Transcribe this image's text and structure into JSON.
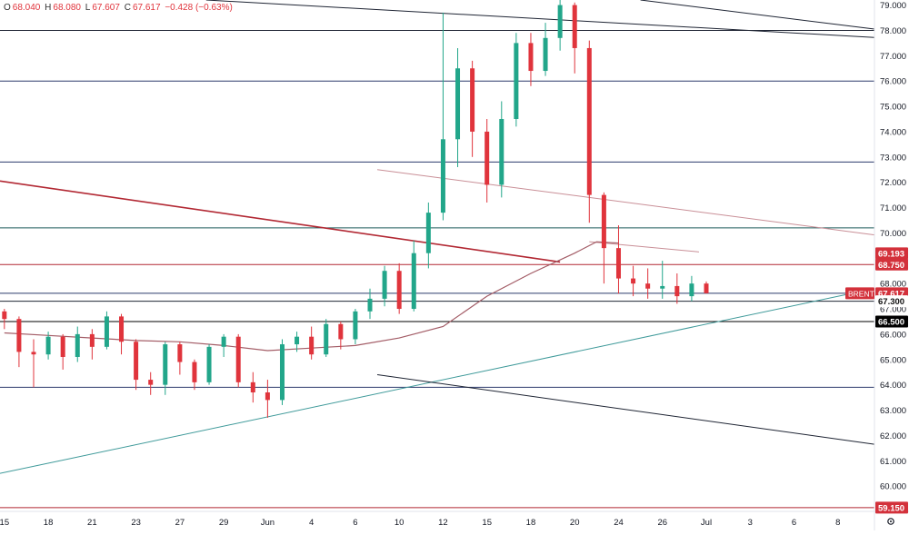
{
  "ohlc": {
    "open_label": "O",
    "open": "68.040",
    "high_label": "H",
    "high": "68.080",
    "low_label": "L",
    "low": "67.607",
    "close_label": "C",
    "close": "67.617",
    "change": "−0.428 (−0.63%)"
  },
  "chart_data": {
    "type": "candlestick",
    "symbol": "BRENT",
    "last_price": "67.617",
    "ylim": [
      59.0,
      79.2
    ],
    "y_ticks": [
      "60.000",
      "61.000",
      "62.000",
      "63.000",
      "64.000",
      "65.000",
      "66.000",
      "67.000",
      "68.000",
      "70.000",
      "71.000",
      "72.000",
      "73.000",
      "74.000",
      "75.000",
      "76.000",
      "77.000",
      "78.000",
      "79.000"
    ],
    "x_ticks": [
      {
        "label": "15",
        "i": 0
      },
      {
        "label": "18",
        "i": 3
      },
      {
        "label": "21",
        "i": 6
      },
      {
        "label": "23",
        "i": 9
      },
      {
        "label": "27",
        "i": 12
      },
      {
        "label": "29",
        "i": 15
      },
      {
        "label": "Jun",
        "i": 18
      },
      {
        "label": "4",
        "i": 21
      },
      {
        "label": "6",
        "i": 24
      },
      {
        "label": "10",
        "i": 27
      },
      {
        "label": "12",
        "i": 30
      },
      {
        "label": "15",
        "i": 33
      },
      {
        "label": "18",
        "i": 36
      },
      {
        "label": "20",
        "i": 39
      },
      {
        "label": "24",
        "i": 42
      },
      {
        "label": "26",
        "i": 45
      },
      {
        "label": "Jul",
        "i": 48
      },
      {
        "label": "3",
        "i": 51
      },
      {
        "label": "6",
        "i": 54
      },
      {
        "label": "8",
        "i": 57
      }
    ],
    "x_range": [
      -0.3,
      59.5
    ],
    "horizontal_levels": [
      {
        "value": 78.0,
        "color": "#1e2433"
      },
      {
        "value": 76.0,
        "color": "#2b3a6b"
      },
      {
        "value": 72.8,
        "color": "#2b3a6b"
      },
      {
        "value": 70.2,
        "color": "#1e5a5a"
      },
      {
        "value": 68.75,
        "color": "#b22833"
      },
      {
        "value": 67.617,
        "color": "#2b3a6b"
      },
      {
        "value": 67.3,
        "color": "#1e2433"
      },
      {
        "value": 66.5,
        "color": "#000000"
      },
      {
        "value": 63.9,
        "color": "#2b3a6b"
      },
      {
        "value": 59.15,
        "color": "#b22833"
      }
    ],
    "price_labels": [
      {
        "text": "69.193",
        "value": 69.193,
        "bg": "#d3313b",
        "color": "#ffffff"
      },
      {
        "text": "68.750",
        "value": 68.75,
        "bg": "#d3313b",
        "color": "#ffffff"
      },
      {
        "text": "67.617",
        "value": 67.617,
        "bg": "#d3313b",
        "color": "#ffffff"
      },
      {
        "text": "67.300",
        "value": 67.3,
        "bg": "#ffffff",
        "color": "#111111"
      },
      {
        "text": "66.500",
        "value": 66.5,
        "bg": "#000000",
        "color": "#ffffff"
      },
      {
        "text": "59.150",
        "value": 59.15,
        "bg": "#d3313b",
        "color": "#ffffff"
      }
    ],
    "trendlines": [
      {
        "x1": 13.8,
        "y1": 79.2,
        "x2": 59.5,
        "y2": 77.72,
        "color": "#1e2433",
        "width": 1
      },
      {
        "x1": 43.5,
        "y1": 79.2,
        "x2": 59.5,
        "y2": 78.05,
        "color": "#1e2433",
        "width": 1
      },
      {
        "x1": -0.3,
        "y1": 72.05,
        "x2": 38.0,
        "y2": 68.85,
        "color": "#b22833",
        "width": 1.6
      },
      {
        "x1": 25.5,
        "y1": 72.5,
        "x2": 59.5,
        "y2": 69.92,
        "color": "#c98f97",
        "width": 1
      },
      {
        "x1": 40.0,
        "y1": 69.65,
        "x2": 47.5,
        "y2": 69.25,
        "color": "#c98f97",
        "width": 1
      },
      {
        "x1": -0.3,
        "y1": 60.5,
        "x2": 59.5,
        "y2": 67.8,
        "color": "#3f9a9a",
        "width": 1
      },
      {
        "x1": 25.5,
        "y1": 64.4,
        "x2": 59.5,
        "y2": 61.65,
        "color": "#1e2433",
        "width": 1
      }
    ],
    "moving_average": {
      "color": "#a35c66",
      "points": [
        [
          0,
          66.05
        ],
        [
          3,
          65.95
        ],
        [
          6,
          65.85
        ],
        [
          9,
          65.75
        ],
        [
          12,
          65.7
        ],
        [
          15,
          65.55
        ],
        [
          18,
          65.35
        ],
        [
          21,
          65.45
        ],
        [
          24,
          65.55
        ],
        [
          27,
          65.85
        ],
        [
          30,
          66.3
        ],
        [
          33,
          67.5
        ],
        [
          36,
          68.4
        ],
        [
          39,
          69.2
        ],
        [
          40.5,
          69.65
        ],
        [
          42,
          69.6
        ]
      ]
    },
    "candles": [
      [
        66.9,
        66.6,
        67.0,
        66.2
      ],
      [
        66.6,
        65.3,
        66.7,
        64.7
      ],
      [
        65.3,
        65.2,
        65.8,
        63.9
      ],
      [
        65.2,
        65.9,
        66.1,
        65.0
      ],
      [
        65.9,
        65.1,
        66.0,
        64.6
      ],
      [
        65.1,
        66.0,
        66.3,
        64.9
      ],
      [
        66.0,
        65.5,
        66.2,
        65.0
      ],
      [
        65.5,
        66.7,
        66.9,
        65.4
      ],
      [
        66.7,
        65.7,
        66.8,
        65.2
      ],
      [
        65.7,
        64.2,
        65.8,
        63.8
      ],
      [
        64.2,
        64.0,
        64.5,
        63.6
      ],
      [
        64.0,
        65.6,
        65.7,
        63.6
      ],
      [
        65.6,
        64.9,
        65.7,
        64.4
      ],
      [
        64.9,
        64.1,
        65.0,
        63.8
      ],
      [
        64.1,
        65.5,
        65.6,
        64.0
      ],
      [
        65.5,
        65.9,
        66.0,
        65.1
      ],
      [
        65.9,
        64.1,
        66.0,
        63.9
      ],
      [
        64.1,
        63.7,
        64.5,
        63.3
      ],
      [
        63.7,
        63.4,
        64.2,
        62.7
      ],
      [
        63.4,
        65.6,
        65.8,
        63.2
      ],
      [
        65.6,
        65.9,
        66.1,
        65.3
      ],
      [
        65.9,
        65.2,
        66.3,
        65.0
      ],
      [
        65.2,
        66.4,
        66.6,
        65.1
      ],
      [
        66.4,
        65.8,
        66.5,
        65.4
      ],
      [
        65.8,
        66.9,
        67.0,
        65.6
      ],
      [
        66.9,
        67.4,
        67.8,
        66.6
      ],
      [
        67.4,
        68.5,
        68.7,
        67.1
      ],
      [
        68.5,
        67.0,
        68.8,
        66.8
      ],
      [
        67.0,
        69.2,
        69.7,
        66.9
      ],
      [
        69.2,
        70.8,
        71.2,
        68.6
      ],
      [
        70.8,
        73.7,
        78.7,
        70.5
      ],
      [
        73.7,
        76.5,
        77.3,
        72.6
      ],
      [
        76.5,
        74.0,
        76.8,
        73.0
      ],
      [
        74.0,
        71.9,
        74.5,
        71.2
      ],
      [
        71.9,
        74.5,
        75.2,
        71.4
      ],
      [
        74.5,
        77.5,
        77.9,
        74.2
      ],
      [
        77.5,
        76.4,
        77.9,
        75.8
      ],
      [
        76.4,
        77.7,
        78.3,
        76.2
      ],
      [
        77.7,
        79.0,
        79.2,
        77.2
      ],
      [
        79.0,
        77.3,
        79.1,
        76.3
      ],
      [
        77.3,
        71.5,
        77.6,
        70.4
      ],
      [
        71.5,
        69.4,
        71.6,
        68.0
      ],
      [
        69.4,
        68.2,
        70.3,
        67.6
      ],
      [
        68.2,
        68.0,
        68.7,
        67.5
      ],
      [
        68.0,
        67.8,
        68.6,
        67.4
      ],
      [
        67.8,
        67.9,
        68.9,
        67.4
      ],
      [
        67.9,
        67.5,
        68.4,
        67.2
      ],
      [
        67.5,
        68.0,
        68.3,
        67.3
      ],
      [
        68.0,
        67.617,
        68.08,
        67.607
      ]
    ]
  }
}
